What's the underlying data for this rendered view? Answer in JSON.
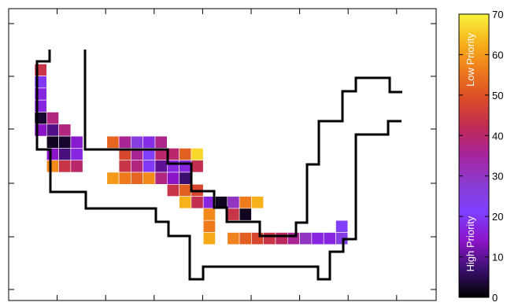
{
  "chart_data": {
    "type": "heatmap",
    "title": "",
    "xlabel": "",
    "ylabel": "",
    "grid_cols": 31,
    "grid_rows": 26,
    "colorbar": {
      "min": 0,
      "max": 70,
      "ticks": [
        "0",
        "10",
        "20",
        "30",
        "40",
        "50",
        "60",
        "70"
      ],
      "top_label": "Low Priority",
      "bottom_label": "High Priority",
      "colormap": [
        "#000000",
        "#3b0f6f",
        "#8c14c8",
        "#7f3fff",
        "#8a3cd2",
        "#a6249e",
        "#c02a55",
        "#db4c28",
        "#ee7a1c",
        "#f7b21a",
        "#f9f53c"
      ]
    },
    "cells": [
      {
        "c": 3,
        "r": 2,
        "v": 44
      },
      {
        "c": 3,
        "r": 3,
        "v": 20
      },
      {
        "c": 3,
        "r": 4,
        "v": 17
      },
      {
        "c": 3,
        "r": 5,
        "v": 17
      },
      {
        "c": 3,
        "r": 6,
        "v": 3
      },
      {
        "c": 4,
        "r": 6,
        "v": 38
      },
      {
        "c": 3,
        "r": 7,
        "v": 14
      },
      {
        "c": 4,
        "r": 7,
        "v": 9
      },
      {
        "c": 5,
        "r": 7,
        "v": 38
      },
      {
        "c": 4,
        "r": 8,
        "v": 2
      },
      {
        "c": 5,
        "r": 8,
        "v": 3
      },
      {
        "c": 6,
        "r": 8,
        "v": 15
      },
      {
        "c": 4,
        "r": 9,
        "v": 14
      },
      {
        "c": 5,
        "r": 9,
        "v": 8
      },
      {
        "c": 6,
        "r": 9,
        "v": 17
      },
      {
        "c": 4,
        "r": 10,
        "v": 58
      },
      {
        "c": 5,
        "r": 10,
        "v": 44
      },
      {
        "c": 6,
        "r": 10,
        "v": 40
      },
      {
        "c": 9,
        "r": 8,
        "v": 53
      },
      {
        "c": 10,
        "r": 8,
        "v": 36
      },
      {
        "c": 11,
        "r": 8,
        "v": 26
      },
      {
        "c": 12,
        "r": 8,
        "v": 18
      },
      {
        "c": 13,
        "r": 8,
        "v": 37
      },
      {
        "c": 10,
        "r": 9,
        "v": 48
      },
      {
        "c": 11,
        "r": 9,
        "v": 36
      },
      {
        "c": 12,
        "r": 9,
        "v": 22
      },
      {
        "c": 13,
        "r": 9,
        "v": 40
      },
      {
        "c": 14,
        "r": 9,
        "v": 40
      },
      {
        "c": 15,
        "r": 9,
        "v": 52
      },
      {
        "c": 16,
        "r": 9,
        "v": 67
      },
      {
        "c": 10,
        "r": 10,
        "v": 44
      },
      {
        "c": 11,
        "r": 10,
        "v": 38
      },
      {
        "c": 12,
        "r": 10,
        "v": 20
      },
      {
        "c": 13,
        "r": 10,
        "v": 10
      },
      {
        "c": 14,
        "r": 10,
        "v": 17
      },
      {
        "c": 15,
        "r": 10,
        "v": 17
      },
      {
        "c": 16,
        "r": 10,
        "v": 43
      },
      {
        "c": 9,
        "r": 11,
        "v": 60
      },
      {
        "c": 10,
        "r": 11,
        "v": 56
      },
      {
        "c": 11,
        "r": 11,
        "v": 53
      },
      {
        "c": 12,
        "r": 11,
        "v": 58
      },
      {
        "c": 13,
        "r": 11,
        "v": 38
      },
      {
        "c": 14,
        "r": 11,
        "v": 14
      },
      {
        "c": 15,
        "r": 11,
        "v": 7
      },
      {
        "c": 14,
        "r": 12,
        "v": 44
      },
      {
        "c": 15,
        "r": 12,
        "v": 52
      },
      {
        "c": 16,
        "r": 12,
        "v": 48
      },
      {
        "c": 15,
        "r": 13,
        "v": 63
      },
      {
        "c": 16,
        "r": 13,
        "v": 43
      },
      {
        "c": 17,
        "r": 13,
        "v": 17
      },
      {
        "c": 18,
        "r": 13,
        "v": 2
      },
      {
        "c": 19,
        "r": 13,
        "v": 30
      },
      {
        "c": 20,
        "r": 13,
        "v": 56
      },
      {
        "c": 21,
        "r": 13,
        "v": 63
      },
      {
        "c": 17,
        "r": 14,
        "v": 58
      },
      {
        "c": 19,
        "r": 14,
        "v": 44
      },
      {
        "c": 20,
        "r": 14,
        "v": 2
      },
      {
        "c": 17,
        "r": 15,
        "v": 56
      },
      {
        "c": 28,
        "r": 15,
        "v": 22
      },
      {
        "c": 17,
        "r": 16,
        "v": 62
      },
      {
        "c": 19,
        "r": 16,
        "v": 57
      },
      {
        "c": 20,
        "r": 16,
        "v": 52
      },
      {
        "c": 21,
        "r": 16,
        "v": 48
      },
      {
        "c": 22,
        "r": 16,
        "v": 44
      },
      {
        "c": 23,
        "r": 16,
        "v": 41
      },
      {
        "c": 24,
        "r": 16,
        "v": 36
      },
      {
        "c": 25,
        "r": 16,
        "v": 30
      },
      {
        "c": 26,
        "r": 16,
        "v": 17
      },
      {
        "c": 27,
        "r": 16,
        "v": 17
      },
      {
        "c": 28,
        "r": 16,
        "v": 25
      }
    ]
  }
}
